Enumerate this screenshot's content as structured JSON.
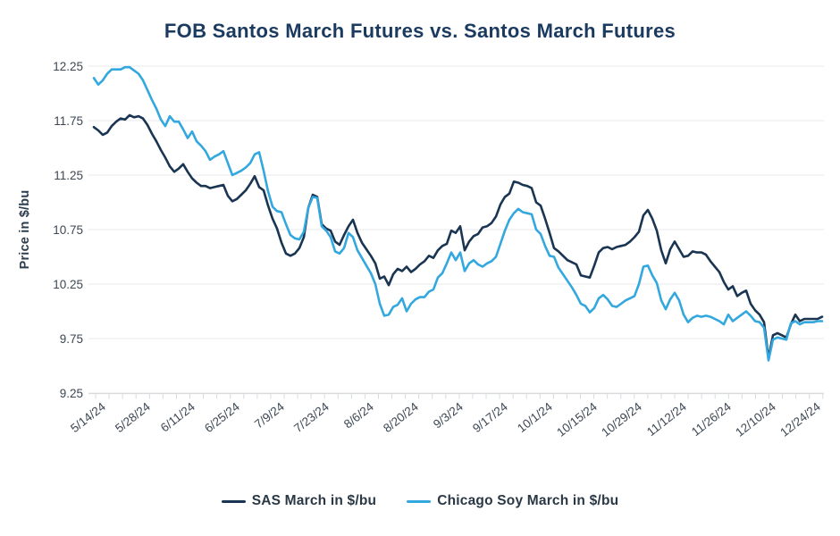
{
  "chart_data": {
    "type": "line",
    "title": "FOB Santos March Futures vs. Santos March Futures",
    "xlabel": "",
    "ylabel": "Price in $/bu",
    "ylim": [
      9.25,
      12.25
    ],
    "y_tick_labels": [
      "12.25",
      "11.75",
      "11.25",
      "10.75",
      "10.25",
      "9.75",
      "9.25"
    ],
    "x_tick_labels": [
      "5/14/24",
      "5/28/24",
      "6/11/24",
      "6/25/24",
      "7/9/24",
      "7/23/24",
      "8/6/24",
      "8/20/24",
      "9/3/24",
      "9/17/24",
      "10/1/24",
      "10/15/24",
      "10/29/24",
      "11/12/24",
      "11/26/24",
      "12/10/24",
      "12/24/24"
    ],
    "grid": "horizontal",
    "legend_position": "bottom-center",
    "series": [
      {
        "name": "SAS March in $/bu",
        "color": "#1A3552",
        "values": [
          11.69,
          11.66,
          11.62,
          11.64,
          11.7,
          11.74,
          11.77,
          11.76,
          11.8,
          11.78,
          11.79,
          11.77,
          11.71,
          11.63,
          11.56,
          11.48,
          11.41,
          11.33,
          11.28,
          11.31,
          11.35,
          11.28,
          11.22,
          11.18,
          11.15,
          11.15,
          11.13,
          11.14,
          11.15,
          11.16,
          11.06,
          11.01,
          11.03,
          11.07,
          11.11,
          11.17,
          11.24,
          11.14,
          11.11,
          10.97,
          10.85,
          10.76,
          10.63,
          10.53,
          10.51,
          10.53,
          10.58,
          10.68,
          10.95,
          11.07,
          11.05,
          10.8,
          10.76,
          10.74,
          10.64,
          10.61,
          10.7,
          10.78,
          10.84,
          10.72,
          10.63,
          10.57,
          10.51,
          10.44,
          10.3,
          10.32,
          10.24,
          10.34,
          10.39,
          10.37,
          10.41,
          10.36,
          10.39,
          10.43,
          10.46,
          10.51,
          10.49,
          10.56,
          10.6,
          10.62,
          10.74,
          10.72,
          10.78,
          10.56,
          10.64,
          10.69,
          10.71,
          10.77,
          10.78,
          10.81,
          10.87,
          10.98,
          11.05,
          11.08,
          11.19,
          11.18,
          11.16,
          11.15,
          11.13,
          11.0,
          10.97,
          10.85,
          10.72,
          10.58,
          10.55,
          10.51,
          10.47,
          10.45,
          10.43,
          10.33,
          10.32,
          10.31,
          10.42,
          10.54,
          10.58,
          10.59,
          10.57,
          10.59,
          10.6,
          10.61,
          10.64,
          10.68,
          10.73,
          10.88,
          10.93,
          10.85,
          10.74,
          10.56,
          10.44,
          10.57,
          10.64,
          10.57,
          10.5,
          10.51,
          10.55,
          10.54,
          10.54,
          10.52,
          10.46,
          10.41,
          10.36,
          10.27,
          10.2,
          10.23,
          10.14,
          10.17,
          10.19,
          10.07,
          10.01,
          9.97,
          9.9,
          9.57,
          9.78,
          9.8,
          9.78,
          9.76,
          9.88,
          9.97,
          9.91,
          9.93,
          9.93,
          9.93,
          9.93,
          9.95
        ]
      },
      {
        "name": "Chicago Soy March in $/bu",
        "color": "#33A8DE",
        "values": [
          12.14,
          12.08,
          12.12,
          12.18,
          12.22,
          12.22,
          12.22,
          12.24,
          12.24,
          12.21,
          12.18,
          12.12,
          12.03,
          11.94,
          11.86,
          11.76,
          11.7,
          11.79,
          11.74,
          11.74,
          11.67,
          11.59,
          11.65,
          11.56,
          11.52,
          11.47,
          11.39,
          11.42,
          11.44,
          11.47,
          11.36,
          11.25,
          11.27,
          11.29,
          11.32,
          11.36,
          11.44,
          11.46,
          11.29,
          11.1,
          10.96,
          10.92,
          10.91,
          10.8,
          10.7,
          10.67,
          10.66,
          10.73,
          10.95,
          11.05,
          11.04,
          10.78,
          10.74,
          10.68,
          10.55,
          10.53,
          10.58,
          10.72,
          10.68,
          10.56,
          10.49,
          10.42,
          10.35,
          10.25,
          10.07,
          9.96,
          9.97,
          10.04,
          10.06,
          10.12,
          10.0,
          10.07,
          10.11,
          10.13,
          10.13,
          10.18,
          10.2,
          10.31,
          10.35,
          10.44,
          10.54,
          10.47,
          10.54,
          10.37,
          10.44,
          10.47,
          10.43,
          10.41,
          10.44,
          10.46,
          10.5,
          10.62,
          10.74,
          10.84,
          10.9,
          10.94,
          10.91,
          10.9,
          10.89,
          10.75,
          10.71,
          10.6,
          10.51,
          10.5,
          10.4,
          10.34,
          10.28,
          10.22,
          10.15,
          10.07,
          10.05,
          9.99,
          10.03,
          10.12,
          10.15,
          10.11,
          10.05,
          10.04,
          10.07,
          10.1,
          10.12,
          10.14,
          10.25,
          10.41,
          10.42,
          10.33,
          10.26,
          10.1,
          10.02,
          10.11,
          10.17,
          10.1,
          9.97,
          9.9,
          9.94,
          9.96,
          9.95,
          9.96,
          9.95,
          9.93,
          9.91,
          9.88,
          9.97,
          9.91,
          9.94,
          9.97,
          10.0,
          9.96,
          9.91,
          9.9,
          9.85,
          9.55,
          9.74,
          9.76,
          9.75,
          9.74,
          9.89,
          9.91,
          9.88,
          9.9,
          9.9,
          9.9,
          9.91,
          9.91
        ]
      }
    ]
  },
  "style": {
    "title_color": "#1B3A5F",
    "tick_label_color": "#3C4753",
    "gridline_color": "#E9EAEC",
    "axis_line_color": "#D8DBDE",
    "background": "#FFFFFF"
  }
}
